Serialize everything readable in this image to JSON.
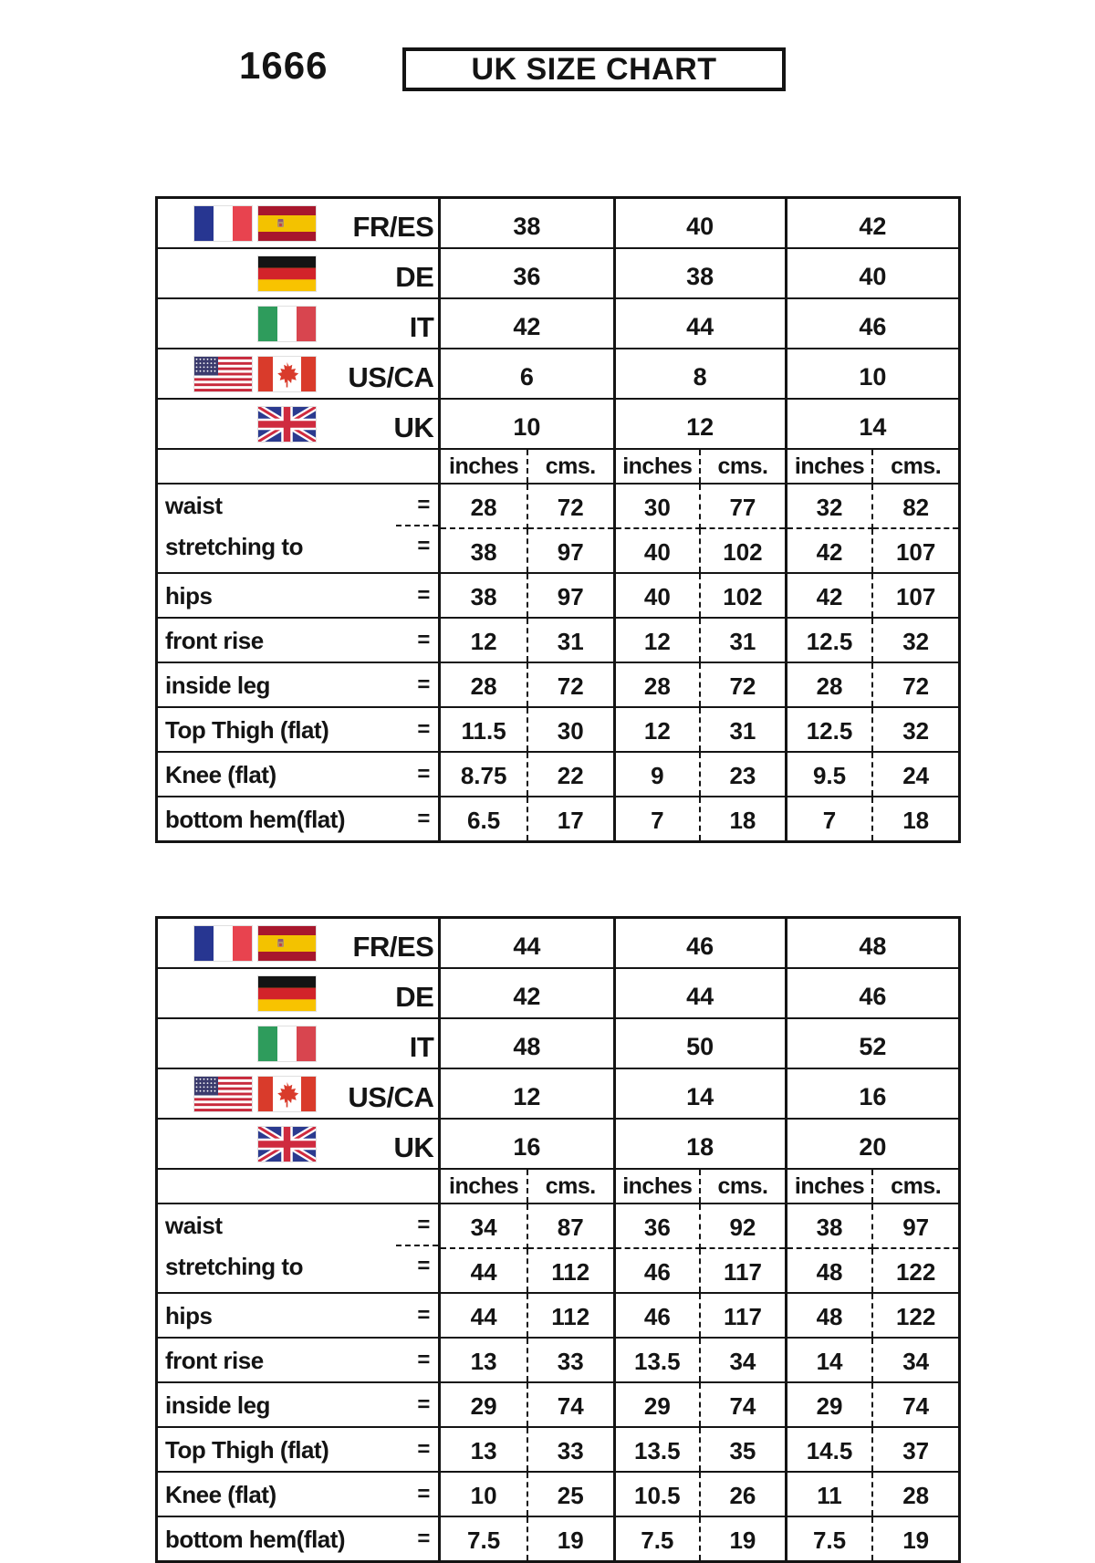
{
  "page": {
    "background": "#ffffff"
  },
  "colors": {
    "line": "#141414",
    "text": "#141414"
  },
  "header": {
    "style_code": "1666",
    "title": "UK SIZE CHART"
  },
  "tables": [
    {
      "name": "uk-sizes-10-12-14",
      "size_rows": [
        {
          "code": "FR/ES",
          "flags": [
            "france",
            "spain"
          ],
          "values": [
            "38",
            "40",
            "42"
          ]
        },
        {
          "code": "DE",
          "flags": [
            "germany"
          ],
          "values": [
            "36",
            "38",
            "40"
          ]
        },
        {
          "code": "IT",
          "flags": [
            "italy"
          ],
          "values": [
            "42",
            "44",
            "46"
          ]
        },
        {
          "code": "US/CA",
          "flags": [
            "usa",
            "canada"
          ],
          "values": [
            "6",
            "8",
            "10"
          ]
        },
        {
          "code": "UK",
          "flags": [
            "uk"
          ],
          "values": [
            "10",
            "12",
            "14"
          ]
        }
      ],
      "unit_headers": [
        "inches",
        "cms."
      ],
      "measurements": [
        {
          "label": "waist",
          "eq": "=",
          "values": [
            "28",
            "72",
            "30",
            "77",
            "32",
            "82"
          ]
        },
        {
          "label": "stretching to",
          "eq": "=",
          "values": [
            "38",
            "97",
            "40",
            "102",
            "42",
            "107"
          ]
        },
        {
          "label": "hips",
          "eq": "=",
          "values": [
            "38",
            "97",
            "40",
            "102",
            "42",
            "107"
          ]
        },
        {
          "label": "front rise",
          "eq": "=",
          "values": [
            "12",
            "31",
            "12",
            "31",
            "12.5",
            "32"
          ]
        },
        {
          "label": "inside leg",
          "eq": "=",
          "values": [
            "28",
            "72",
            "28",
            "72",
            "28",
            "72"
          ]
        },
        {
          "label": "Top Thigh (flat)",
          "eq": "=",
          "values": [
            "11.5",
            "30",
            "12",
            "31",
            "12.5",
            "32"
          ]
        },
        {
          "label": "Knee (flat)",
          "eq": "=",
          "values": [
            "8.75",
            "22",
            "9",
            "23",
            "9.5",
            "24"
          ]
        },
        {
          "label": "bottom hem(flat)",
          "eq": "=",
          "values": [
            "6.5",
            "17",
            "7",
            "18",
            "7",
            "18"
          ]
        }
      ]
    },
    {
      "name": "uk-sizes-16-18-20",
      "size_rows": [
        {
          "code": "FR/ES",
          "flags": [
            "france",
            "spain"
          ],
          "values": [
            "44",
            "46",
            "48"
          ]
        },
        {
          "code": "DE",
          "flags": [
            "germany"
          ],
          "values": [
            "42",
            "44",
            "46"
          ]
        },
        {
          "code": "IT",
          "flags": [
            "italy"
          ],
          "values": [
            "48",
            "50",
            "52"
          ]
        },
        {
          "code": "US/CA",
          "flags": [
            "usa",
            "canada"
          ],
          "values": [
            "12",
            "14",
            "16"
          ]
        },
        {
          "code": "UK",
          "flags": [
            "uk"
          ],
          "values": [
            "16",
            "18",
            "20"
          ]
        }
      ],
      "unit_headers": [
        "inches",
        "cms."
      ],
      "measurements": [
        {
          "label": "waist",
          "eq": "=",
          "values": [
            "34",
            "87",
            "36",
            "92",
            "38",
            "97"
          ]
        },
        {
          "label": "stretching to",
          "eq": "=",
          "values": [
            "44",
            "112",
            "46",
            "117",
            "48",
            "122"
          ]
        },
        {
          "label": "hips",
          "eq": "=",
          "values": [
            "44",
            "112",
            "46",
            "117",
            "48",
            "122"
          ]
        },
        {
          "label": "front rise",
          "eq": "=",
          "values": [
            "13",
            "33",
            "13.5",
            "34",
            "14",
            "34"
          ]
        },
        {
          "label": "inside leg",
          "eq": "=",
          "values": [
            "29",
            "74",
            "29",
            "74",
            "29",
            "74"
          ]
        },
        {
          "label": "Top Thigh (flat)",
          "eq": "=",
          "values": [
            "13",
            "33",
            "13.5",
            "35",
            "14.5",
            "37"
          ]
        },
        {
          "label": "Knee (flat)",
          "eq": "=",
          "values": [
            "10",
            "25",
            "10.5",
            "26",
            "11",
            "28"
          ]
        },
        {
          "label": "bottom hem(flat)",
          "eq": "=",
          "values": [
            "7.5",
            "19",
            "7.5",
            "19",
            "7.5",
            "19"
          ]
        }
      ]
    }
  ]
}
